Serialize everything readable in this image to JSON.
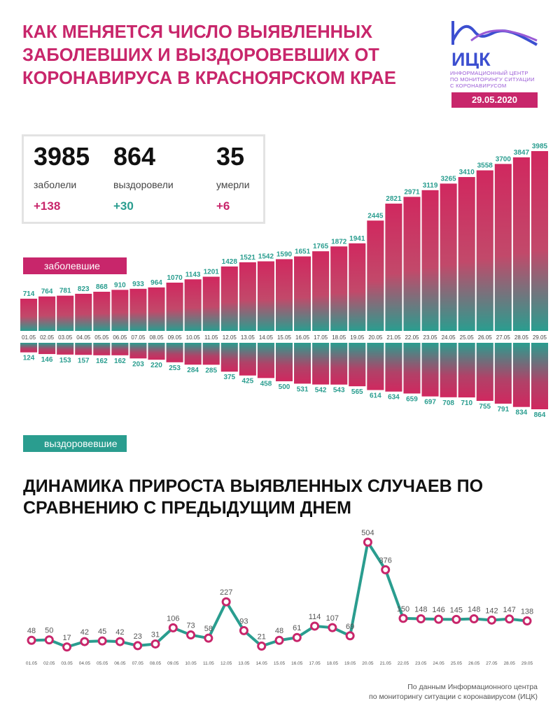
{
  "header": {
    "title": "КАК МЕНЯЕТСЯ ЧИСЛО ВЫЯВЛЕННЫХ ЗАБОЛЕВШИХ И ВЫЗДОРОВЕВШИХ ОТ КОРОНАВИРУСА В КРАСНОЯРСКОМ КРАЕ",
    "date": "29.05.2020"
  },
  "logo": {
    "name": "ИЦК",
    "line1": "ИНФОРМАЦИОННЫЙ ЦЕНТР",
    "line2": "ПО МОНИТОРИНГУ СИТУАЦИИ",
    "line3": "С КОРОНАВИРУСОМ"
  },
  "stats": {
    "sick": {
      "value": "3985",
      "label": "заболели",
      "delta": "+138"
    },
    "recovered": {
      "value": "864",
      "label": "выздоровели",
      "delta": "+30"
    },
    "died": {
      "value": "35",
      "label": "умерли",
      "delta": "+6"
    }
  },
  "tags": {
    "sick": "заболевшие",
    "recovered": "выздоровевшие"
  },
  "subtitle": "ДИНАМИКА ПРИРОСТА ВЫЯВЛЕННЫХ СЛУЧАЕВ ПО СРАВНЕНИЮ С ПРЕДЫДУЩИМ ДНЕМ",
  "source": {
    "line1": "По данным Информационного центра",
    "line2": "по мониторингу ситуации с коронавирусом (ИЦК)"
  },
  "colors": {
    "accent": "#c8266b",
    "teal": "#2a9d8f",
    "pink": "#d0285f"
  },
  "chart_data": [
    {
      "type": "bar",
      "categories": [
        "01.05",
        "02.05",
        "03.05",
        "04.05",
        "05.05",
        "06.05",
        "07.05",
        "08.05",
        "09.05",
        "10.05",
        "11.05",
        "12.05",
        "13.05",
        "14.05",
        "15.05",
        "16.05",
        "17.05",
        "18.05",
        "19.05",
        "20.05",
        "21.05",
        "22.05",
        "23.05",
        "24.05",
        "25.05",
        "26.05",
        "27.05",
        "28.05",
        "29.05"
      ],
      "series": [
        {
          "name": "заболевшие",
          "values": [
            714,
            764,
            781,
            823,
            868,
            910,
            933,
            964,
            1070,
            1143,
            1201,
            1428,
            1521,
            1542,
            1590,
            1651,
            1765,
            1872,
            1941,
            2445,
            2821,
            2971,
            3119,
            3265,
            3410,
            3558,
            3700,
            3847,
            3985
          ]
        },
        {
          "name": "выздоровевшие",
          "values": [
            124,
            146,
            153,
            157,
            162,
            162,
            203,
            220,
            253,
            284,
            285,
            375,
            425,
            458,
            500,
            531,
            542,
            543,
            565,
            614,
            634,
            659,
            697,
            708,
            710,
            755,
            791,
            834,
            864
          ]
        }
      ]
    },
    {
      "type": "line",
      "categories": [
        "01.05",
        "02.05",
        "03.05",
        "04.05",
        "05.05",
        "06.05",
        "07.05",
        "08.05",
        "09.05",
        "10.05",
        "11.05",
        "12.05",
        "13.05",
        "14.05",
        "15.05",
        "16.05",
        "17.05",
        "18.05",
        "19.05",
        "20.05",
        "21.05",
        "22.05",
        "23.05",
        "24.05",
        "25.05",
        "26.05",
        "27.05",
        "28.05",
        "29.05"
      ],
      "values": [
        48,
        50,
        17,
        42,
        45,
        42,
        23,
        31,
        106,
        73,
        58,
        227,
        93,
        21,
        48,
        61,
        114,
        107,
        69,
        504,
        376,
        150,
        148,
        146,
        145,
        148,
        142,
        147,
        138
      ]
    }
  ]
}
